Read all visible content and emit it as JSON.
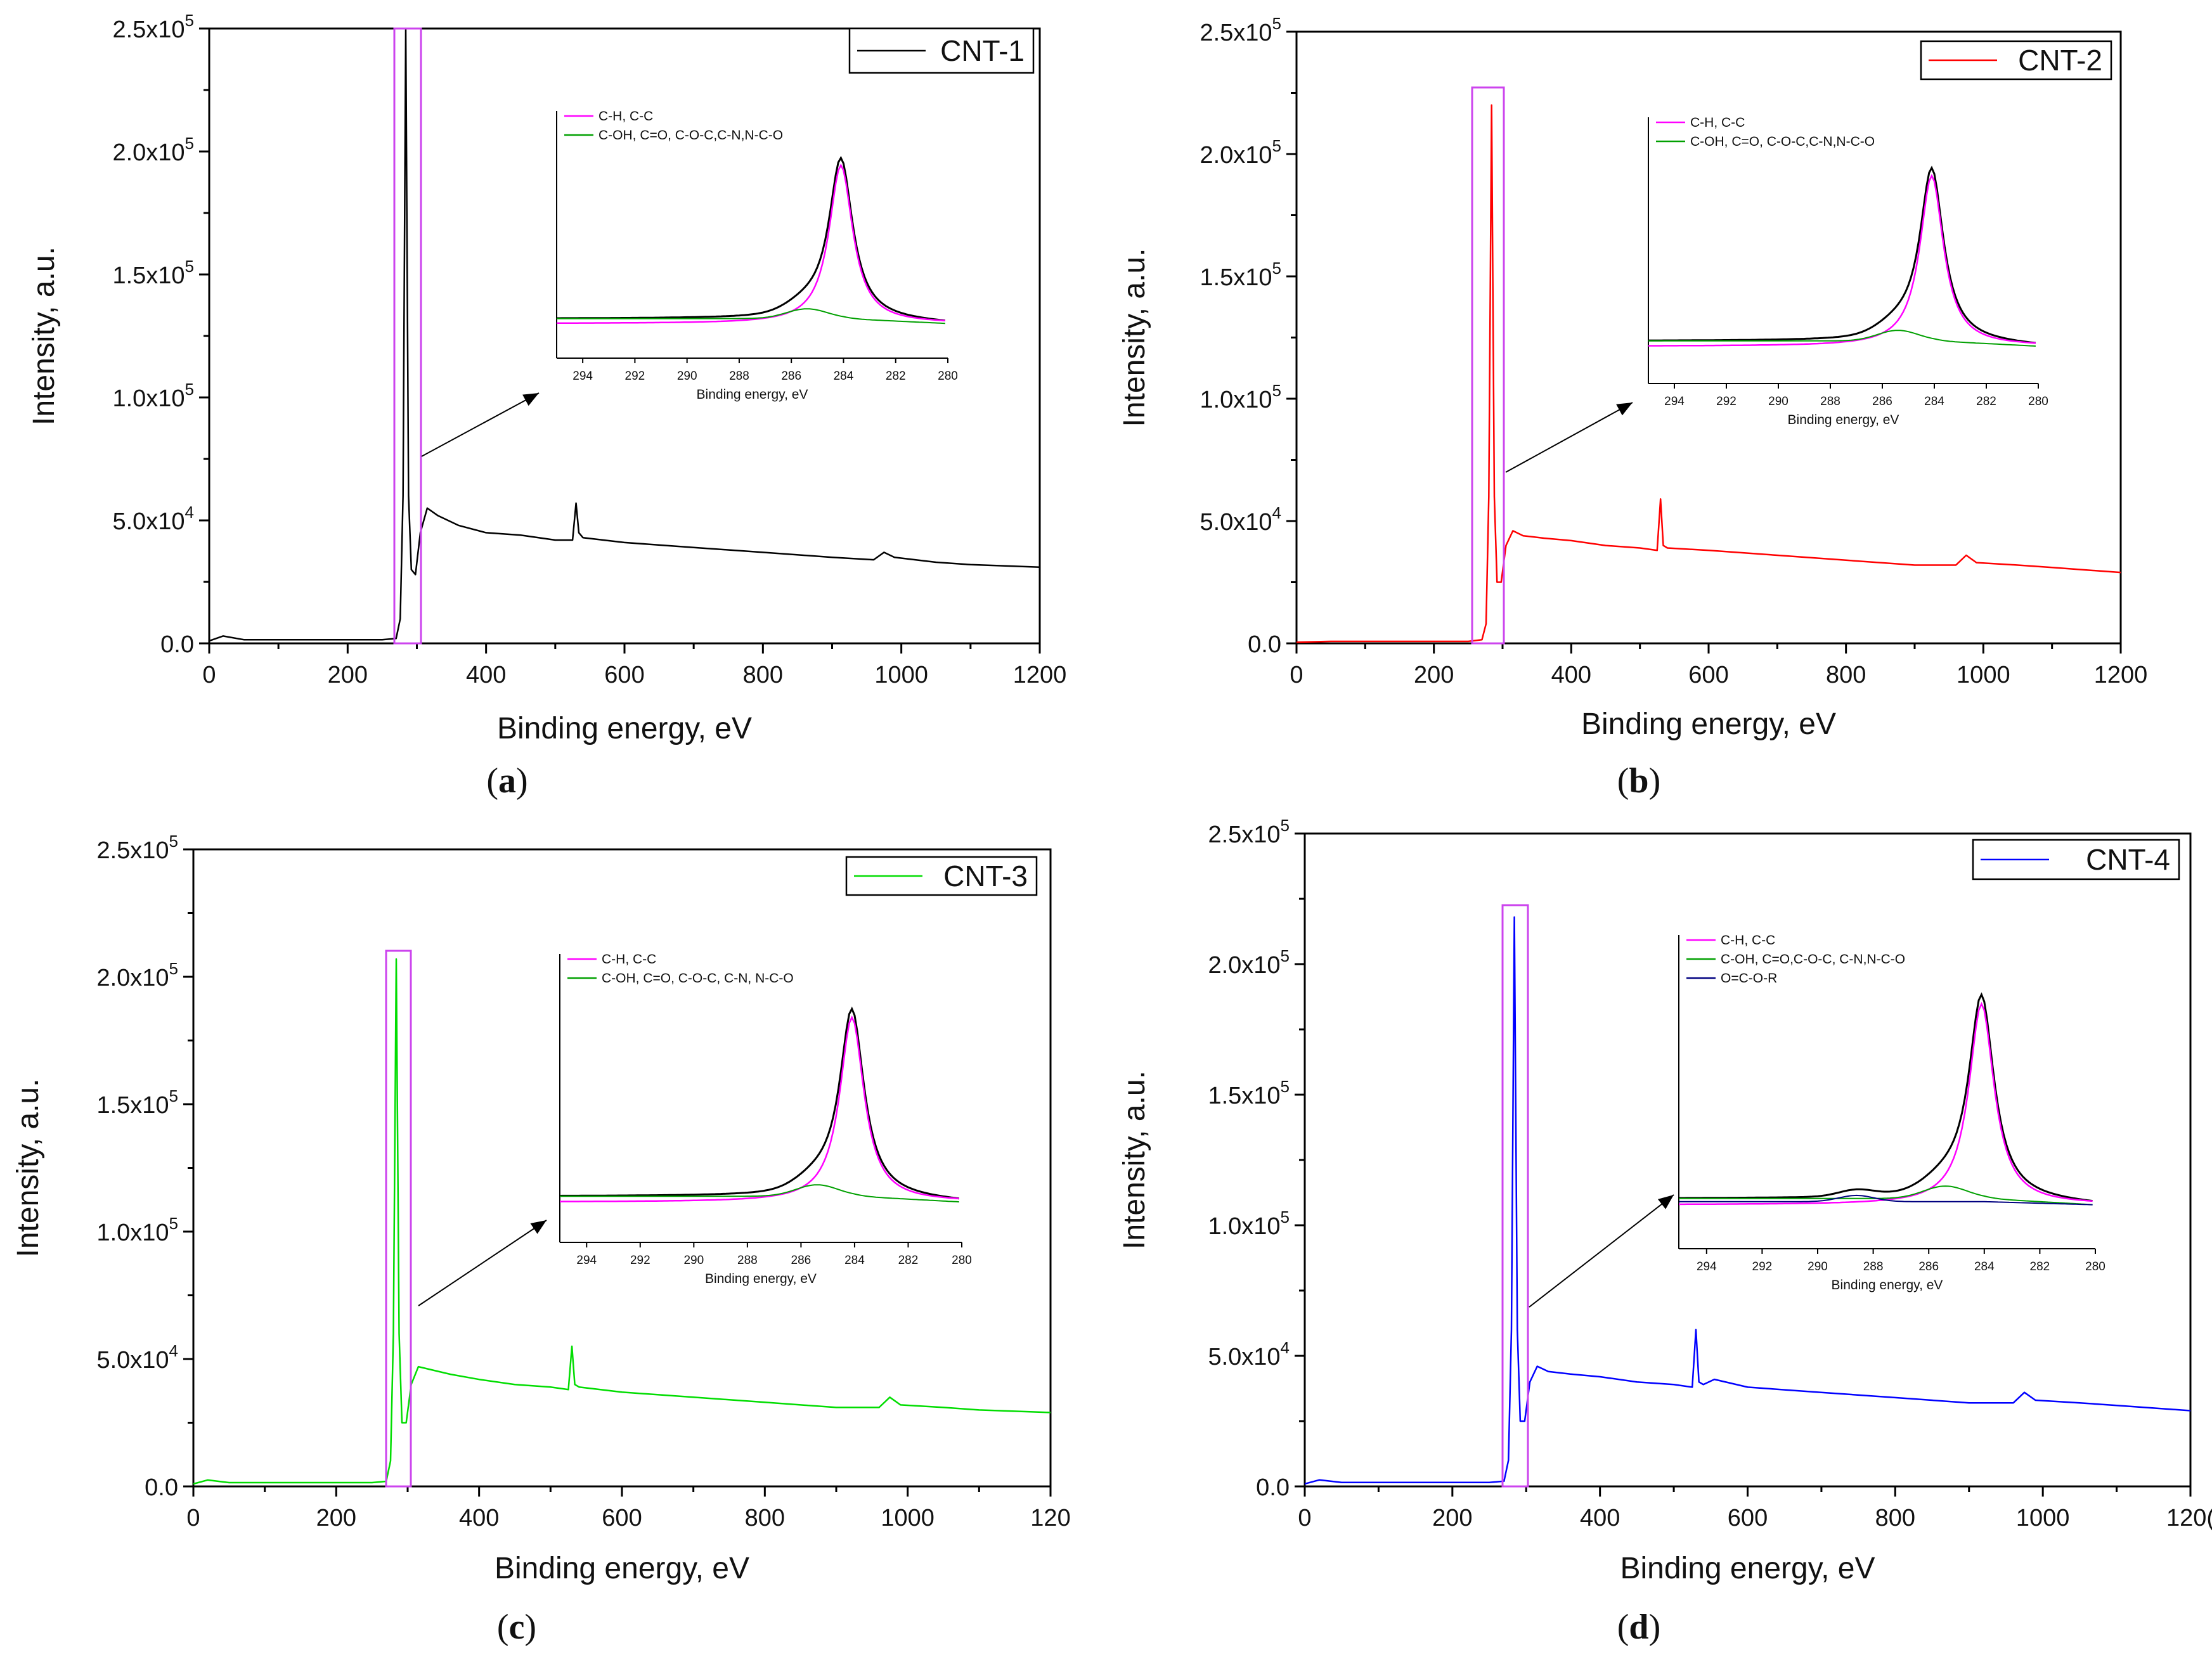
{
  "figure": {
    "panels": [
      {
        "id": "a",
        "label_open": "(",
        "label_letter": "a",
        "label_close": ")"
      },
      {
        "id": "b",
        "label_open": "(",
        "label_letter": "b",
        "label_close": ")"
      },
      {
        "id": "c",
        "label_open": "(",
        "label_letter": "c",
        "label_close": ")"
      },
      {
        "id": "d",
        "label_open": "(",
        "label_letter": "d",
        "label_close": ")"
      }
    ]
  },
  "chart_data": [
    {
      "type": "line",
      "panel": "a",
      "legend": "CNT-1",
      "color": "#000000",
      "xlabel": "Binding energy, eV",
      "ylabel": "Intensity, a.u.",
      "xlim": [
        0,
        1200
      ],
      "ylim": [
        0,
        250000
      ],
      "xticks": [
        "0",
        "200",
        "400",
        "600",
        "800",
        "1000",
        "1200"
      ],
      "yticks": [
        "0.0",
        "5.0x10",
        "1.0x10",
        "1.5x10",
        "2.0x10",
        "2.5x10"
      ],
      "ytick_exponents": [
        "",
        "4",
        "5",
        "5",
        "5",
        "5"
      ],
      "x": [
        0,
        20,
        50,
        100,
        150,
        200,
        250,
        270,
        276,
        280,
        284,
        288,
        292,
        298,
        305,
        315,
        330,
        360,
        400,
        450,
        500,
        525,
        530,
        534,
        540,
        600,
        700,
        800,
        900,
        960,
        975,
        990,
        1050,
        1100,
        1150,
        1200
      ],
      "y": [
        1000,
        3000,
        1500,
        1500,
        1500,
        1500,
        1500,
        2000,
        10000,
        60000,
        250000,
        60000,
        30000,
        28000,
        45000,
        55000,
        52000,
        48000,
        45000,
        44000,
        42000,
        42000,
        57000,
        45000,
        43000,
        41000,
        39000,
        37000,
        35000,
        34000,
        37000,
        35000,
        33000,
        32000,
        31500,
        31000
      ],
      "inset": {
        "legend": [
          {
            "label": "C-H, C-C",
            "color": "#ff00ff"
          },
          {
            "label": "C-OH, C=O, C-O-C,C-N,N-C-O",
            "color": "#00a000"
          }
        ],
        "xlabel": "Binding energy, eV",
        "xticks": [
          "294",
          "292",
          "290",
          "288",
          "286",
          "284",
          "282",
          "280"
        ],
        "xlim": [
          295,
          280
        ]
      }
    },
    {
      "type": "line",
      "panel": "b",
      "legend": "CNT-2",
      "color": "#ff0000",
      "xlabel": "Binding energy, eV",
      "ylabel": "Intensity, a.u.",
      "xlim": [
        0,
        1200
      ],
      "ylim": [
        0,
        250000
      ],
      "xticks": [
        "0",
        "200",
        "400",
        "600",
        "800",
        "1000",
        "1200"
      ],
      "yticks": [
        "0.0",
        "5.0x10",
        "1.0x10",
        "1.5x10",
        "2.0x10",
        "2.5x10"
      ],
      "ytick_exponents": [
        "",
        "4",
        "5",
        "5",
        "5",
        "5"
      ],
      "x": [
        0,
        50,
        100,
        150,
        200,
        250,
        270,
        276,
        280,
        284,
        288,
        292,
        298,
        305,
        315,
        330,
        360,
        400,
        450,
        500,
        525,
        530,
        534,
        540,
        600,
        700,
        800,
        900,
        960,
        975,
        990,
        1050,
        1100,
        1150,
        1200
      ],
      "y": [
        500,
        800,
        800,
        800,
        800,
        800,
        1500,
        8000,
        60000,
        220000,
        60000,
        25000,
        25000,
        40000,
        46000,
        44000,
        43000,
        42000,
        40000,
        39000,
        38000,
        59000,
        40000,
        39000,
        38000,
        36000,
        34000,
        32000,
        32000,
        36000,
        33000,
        32000,
        31000,
        30000,
        29000
      ],
      "inset": {
        "legend": [
          {
            "label": "C-H, C-C",
            "color": "#ff00ff"
          },
          {
            "label": "C-OH, C=O, C-O-C,C-N,N-C-O",
            "color": "#00a000"
          }
        ],
        "xlabel": "Binding energy, eV",
        "xticks": [
          "294",
          "292",
          "290",
          "288",
          "286",
          "284",
          "282",
          "280"
        ],
        "xlim": [
          295,
          280
        ]
      }
    },
    {
      "type": "line",
      "panel": "c",
      "legend": "CNT-3",
      "color": "#00dd00",
      "xlabel": "Binding energy, eV",
      "ylabel": "Intensity, a.u.",
      "xlim": [
        0,
        1200
      ],
      "ylim": [
        0,
        250000
      ],
      "xticks": [
        "0",
        "200",
        "400",
        "600",
        "800",
        "1000",
        "120"
      ],
      "yticks": [
        "0.0",
        "5.0x10",
        "1.0x10",
        "1.5x10",
        "2.0x10",
        "2.5x10"
      ],
      "ytick_exponents": [
        "",
        "4",
        "5",
        "5",
        "5",
        "5"
      ],
      "x": [
        0,
        20,
        50,
        100,
        150,
        200,
        250,
        270,
        276,
        280,
        284,
        288,
        292,
        298,
        305,
        315,
        330,
        360,
        400,
        450,
        500,
        525,
        530,
        534,
        540,
        600,
        700,
        800,
        900,
        960,
        975,
        990,
        1050,
        1100,
        1150,
        1200
      ],
      "y": [
        1000,
        2500,
        1500,
        1500,
        1500,
        1500,
        1500,
        2000,
        10000,
        60000,
        207000,
        60000,
        25000,
        25000,
        40000,
        47000,
        46000,
        44000,
        42000,
        40000,
        39000,
        38000,
        55000,
        40000,
        39000,
        37000,
        35000,
        33000,
        31000,
        31000,
        35000,
        32000,
        31000,
        30000,
        29500,
        29000
      ],
      "inset": {
        "legend": [
          {
            "label": "C-H, C-C",
            "color": "#ff00ff"
          },
          {
            "label": "C-OH, C=O, C-O-C, C-N, N-C-O",
            "color": "#00a000"
          }
        ],
        "xlabel": "Binding energy, eV",
        "xticks": [
          "294",
          "292",
          "290",
          "288",
          "286",
          "284",
          "282",
          "280"
        ],
        "xlim": [
          295,
          280
        ]
      }
    },
    {
      "type": "line",
      "panel": "d",
      "legend": "CNT-4",
      "color": "#0000ff",
      "xlabel": "Binding energy, eV",
      "ylabel": "Intensity, a.u.",
      "xlim": [
        0,
        1200
      ],
      "ylim": [
        0,
        250000
      ],
      "xticks": [
        "0",
        "200",
        "400",
        "600",
        "800",
        "1000",
        "120("
      ],
      "yticks": [
        "0.0",
        "5.0x10",
        "1.0x10",
        "1.5x10",
        "2.0x10",
        "2.5x10"
      ],
      "ytick_exponents": [
        "",
        "4",
        "5",
        "5",
        "5",
        "5"
      ],
      "x": [
        0,
        20,
        50,
        100,
        150,
        200,
        250,
        270,
        276,
        280,
        284,
        288,
        292,
        298,
        305,
        315,
        330,
        360,
        400,
        450,
        500,
        525,
        530,
        534,
        540,
        555,
        600,
        700,
        800,
        900,
        960,
        975,
        990,
        1050,
        1100,
        1150,
        1200
      ],
      "y": [
        1000,
        2500,
        1500,
        1500,
        1500,
        1500,
        1500,
        2000,
        10000,
        60000,
        218000,
        60000,
        25000,
        25000,
        40000,
        46000,
        44000,
        43000,
        42000,
        40000,
        39000,
        38000,
        60000,
        40000,
        39000,
        41000,
        38000,
        36000,
        34000,
        32000,
        32000,
        36000,
        33000,
        32000,
        31000,
        30000,
        29000
      ],
      "inset": {
        "legend": [
          {
            "label": "C-H, C-C",
            "color": "#ff00ff"
          },
          {
            "label": "C-OH, C=O,C-O-C, C-N,N-C-O",
            "color": "#00a000"
          },
          {
            "label": "O=C-O-R",
            "color": "#000080"
          }
        ],
        "xlabel": "Binding energy, eV",
        "xticks": [
          "294",
          "292",
          "290",
          "288",
          "286",
          "284",
          "282",
          "280"
        ],
        "xlim": [
          295,
          280
        ]
      }
    }
  ]
}
